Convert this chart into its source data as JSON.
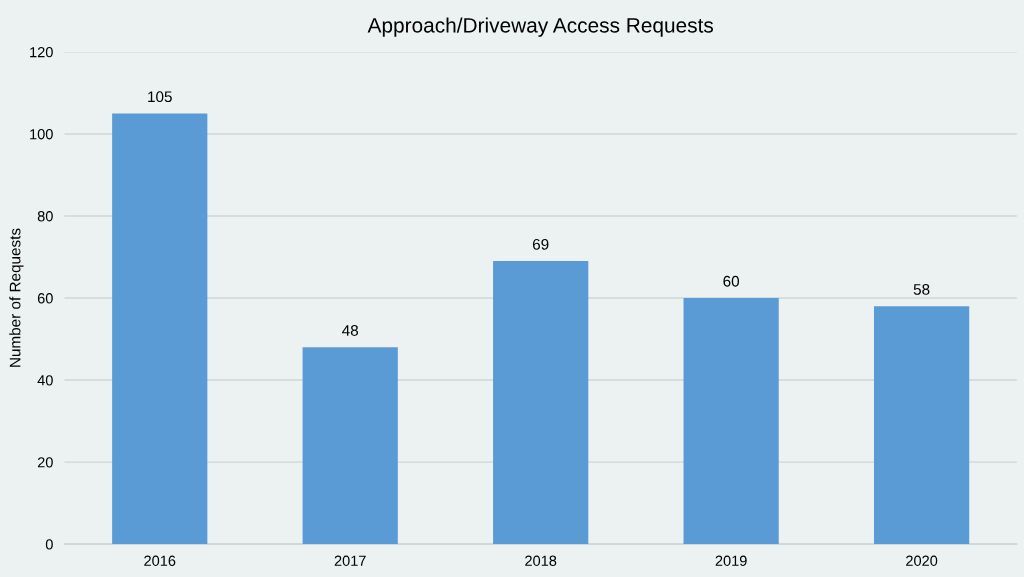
{
  "chart_data": {
    "type": "bar",
    "title": "Approach/Driveway Access Requests",
    "ylabel": "Number of Requests",
    "categories": [
      "2016",
      "2017",
      "2018",
      "2019",
      "2020"
    ],
    "values": [
      105,
      48,
      69,
      60,
      58
    ],
    "color": "#5b9bd5",
    "ylim": [
      0,
      120
    ],
    "yticks": [
      0,
      20,
      40,
      60,
      80,
      100,
      120
    ],
    "grid": "y",
    "data_labels": true,
    "legend": false
  }
}
